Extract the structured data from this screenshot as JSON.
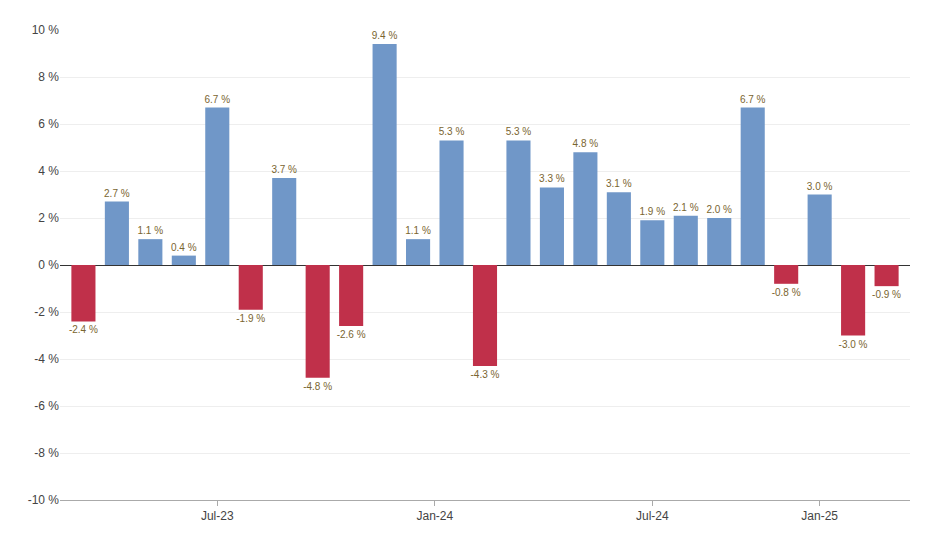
{
  "chart_data": {
    "type": "bar",
    "x": [
      1,
      2,
      3,
      4,
      5,
      6,
      7,
      8,
      9,
      10,
      11,
      12,
      13,
      14,
      15,
      16,
      17,
      18,
      19,
      20,
      21,
      22,
      23,
      24,
      25
    ],
    "values": [
      -2.4,
      2.7,
      1.1,
      0.4,
      6.7,
      -1.9,
      3.7,
      -4.8,
      -2.6,
      9.4,
      1.1,
      5.3,
      -4.3,
      5.3,
      3.3,
      4.8,
      3.1,
      1.9,
      2.1,
      2.0,
      6.7,
      -0.8,
      3.0,
      -3.0,
      -0.9
    ],
    "value_labels": [
      "-2.4 %",
      "2.7 %",
      "1.1 %",
      "0.4 %",
      "6.7 %",
      "-1.9 %",
      "3.7 %",
      "-4.8 %",
      "-2.6 %",
      "9.4 %",
      "1.1 %",
      "5.3 %",
      "-4.3 %",
      "5.3 %",
      "3.3 %",
      "4.8 %",
      "3.1 %",
      "1.9 %",
      "2.1 %",
      "2.0 %",
      "6.7 %",
      "-0.8 %",
      "3.0 %",
      "-3.0 %",
      "-0.9 %"
    ],
    "colors": [
      "#c0304a",
      "#7097c8",
      "#7097c8",
      "#7097c8",
      "#7097c8",
      "#c0304a",
      "#7097c8",
      "#c0304a",
      "#c0304a",
      "#7097c8",
      "#7097c8",
      "#7097c8",
      "#c0304a",
      "#7097c8",
      "#7097c8",
      "#7097c8",
      "#7097c8",
      "#7097c8",
      "#7097c8",
      "#7097c8",
      "#7097c8",
      "#c0304a",
      "#7097c8",
      "#c0304a",
      "#c0304a"
    ],
    "data_labels": true,
    "xlim": [
      0.3,
      25.7
    ],
    "xticks": [
      {
        "value": 5.0,
        "label": "Jul-23"
      },
      {
        "value": 11.5,
        "label": "Jan-24"
      },
      {
        "value": 18.0,
        "label": "Jul-24"
      },
      {
        "value": 23.0,
        "label": "Jan-25"
      }
    ],
    "ylim": [
      -10,
      10
    ],
    "yticks": [
      {
        "value": -10,
        "label": "-10 %"
      },
      {
        "value": -8,
        "label": "-8 %"
      },
      {
        "value": -6,
        "label": "-6 %"
      },
      {
        "value": -4,
        "label": "-4 %"
      },
      {
        "value": -2,
        "label": "-2 %"
      },
      {
        "value": 0,
        "label": "0 %"
      },
      {
        "value": 2,
        "label": "2 %"
      },
      {
        "value": 4,
        "label": "4 %"
      },
      {
        "value": 6,
        "label": "6 %"
      },
      {
        "value": 8,
        "label": "8 %"
      },
      {
        "value": 10,
        "label": "10 %"
      }
    ],
    "grid": true
  }
}
